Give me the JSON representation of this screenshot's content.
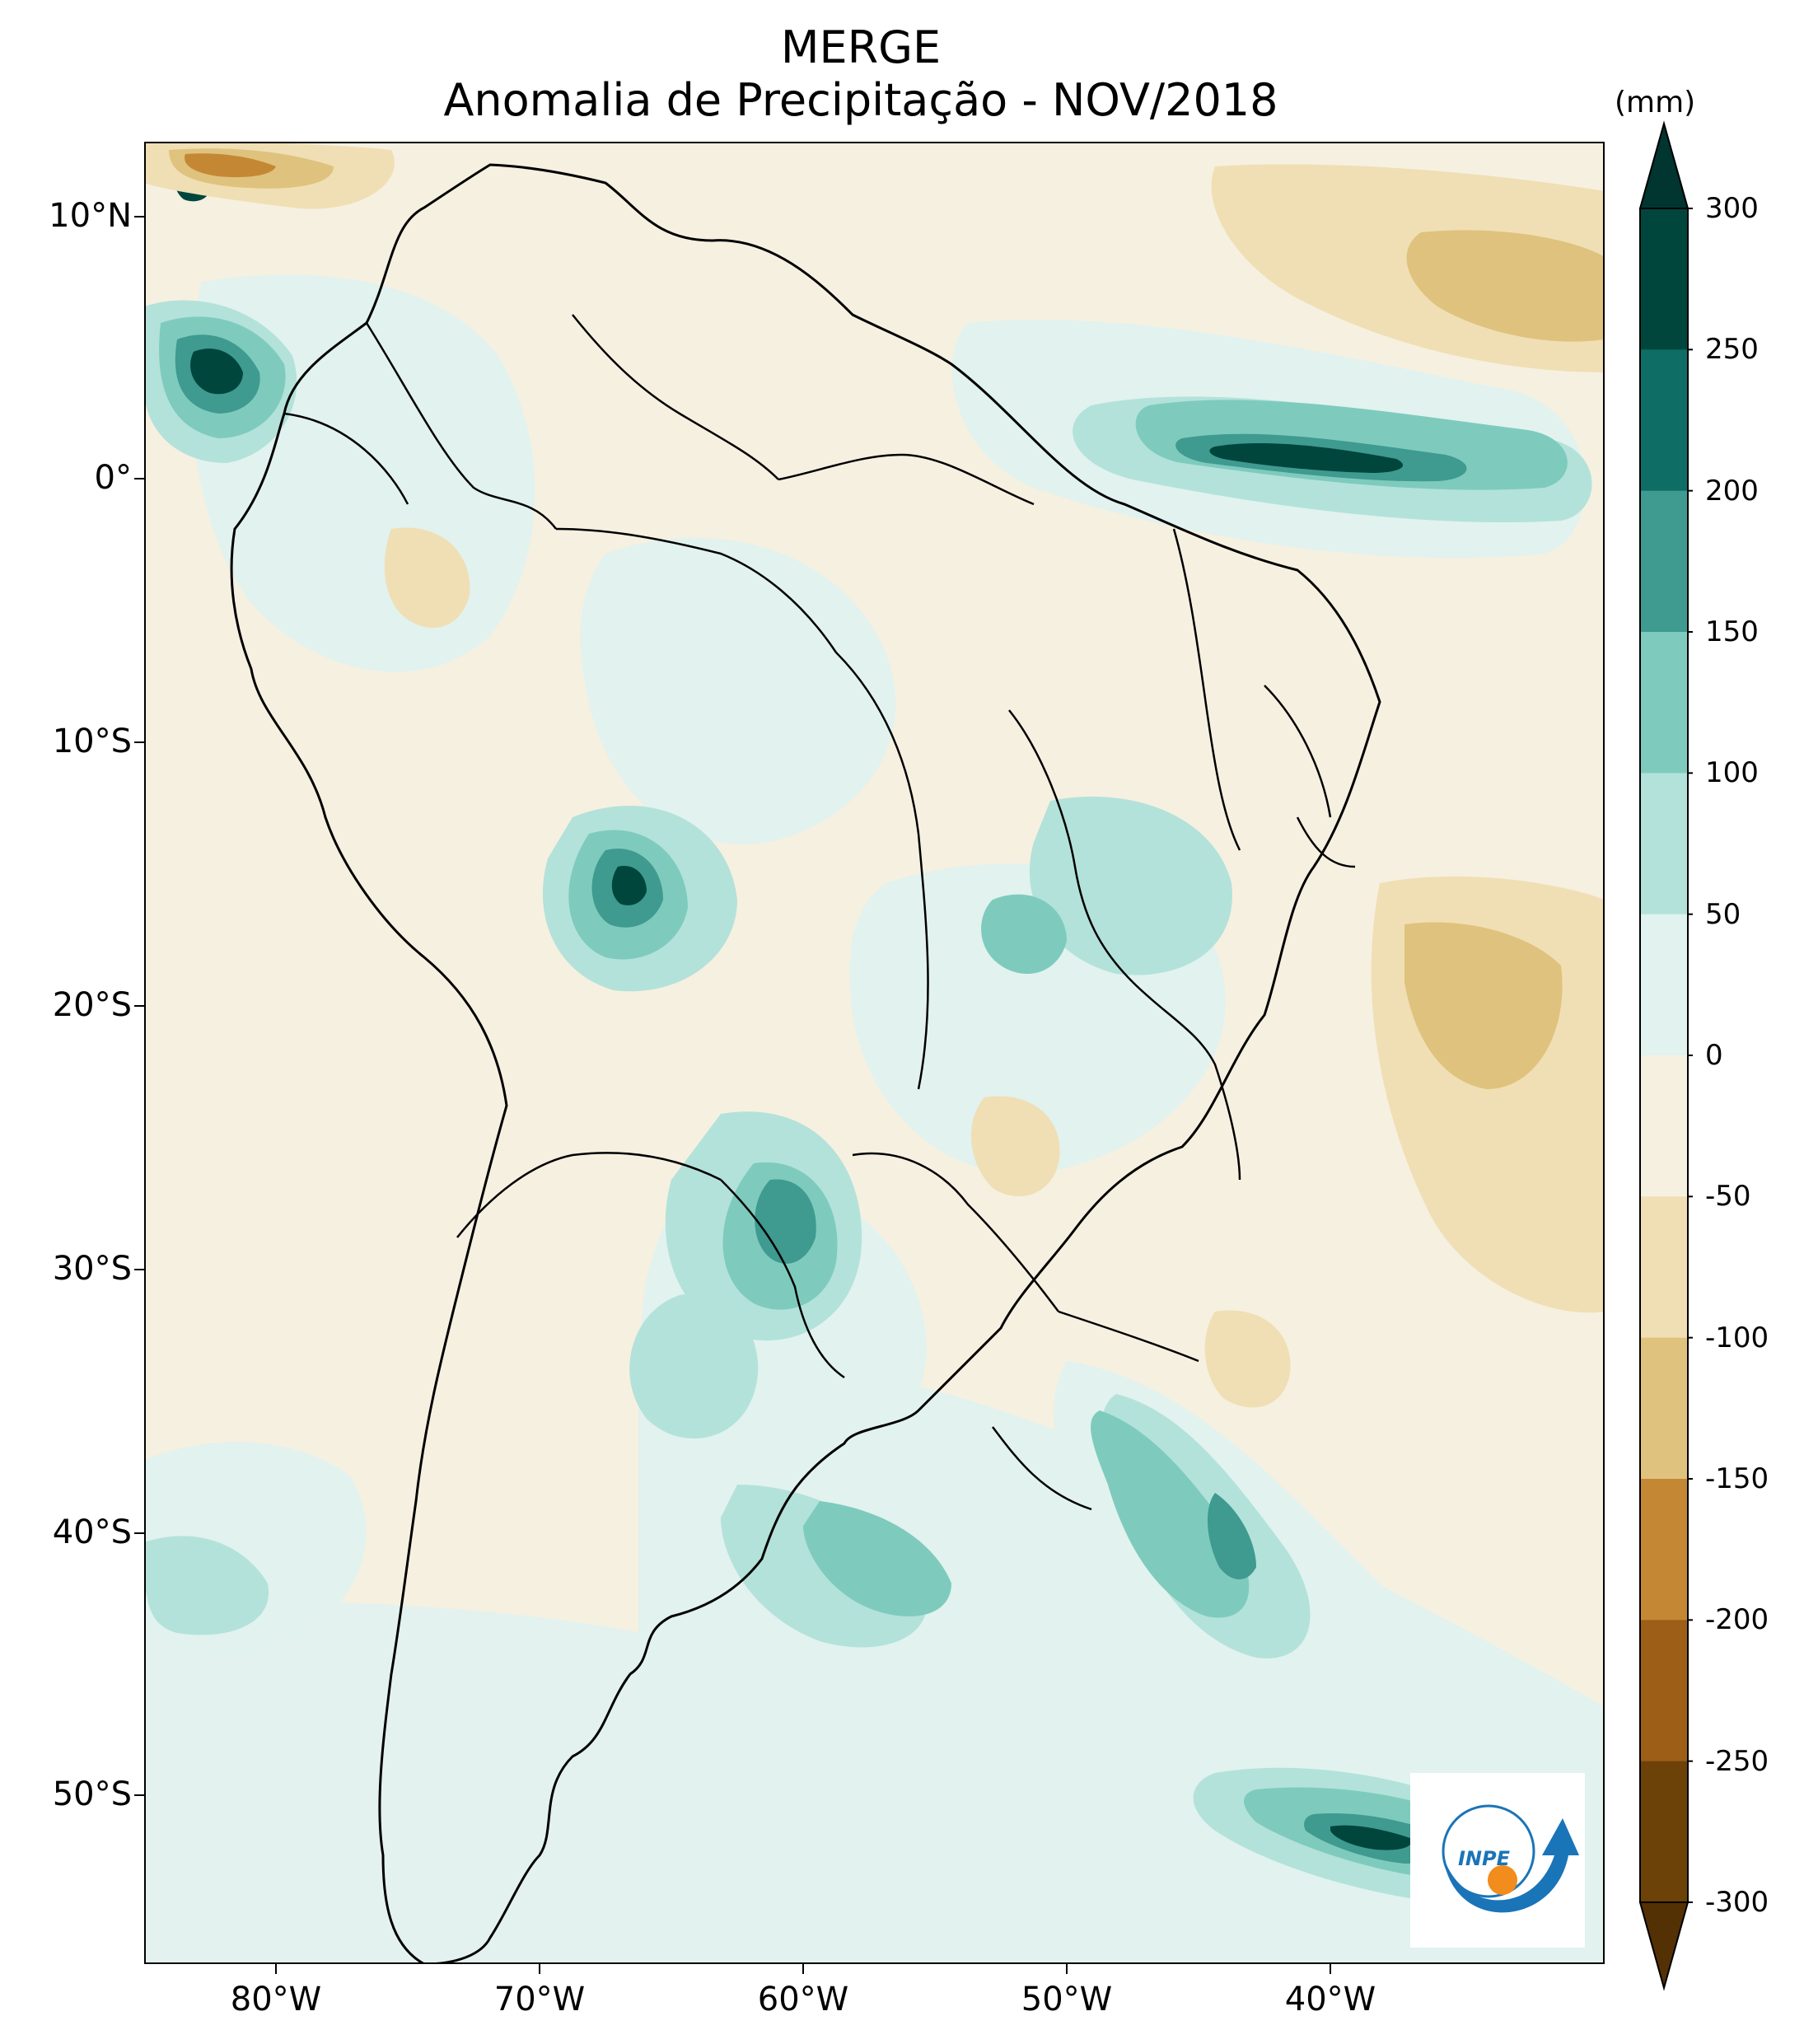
{
  "title": {
    "line1": "MERGE",
    "line2": "Anomalia de Precipitação - NOV/2018"
  },
  "axes": {
    "lat_labels": [
      "10°N",
      "0°",
      "10°S",
      "20°S",
      "30°S",
      "40°S",
      "50°S"
    ],
    "lon_labels": [
      "80°W",
      "70°W",
      "60°W",
      "50°W",
      "40°W"
    ]
  },
  "colorbar": {
    "unit": "(mm)",
    "labels": [
      "300",
      "250",
      "200",
      "150",
      "100",
      "50",
      "0",
      "-50",
      "-100",
      "-150",
      "-200",
      "-250",
      "-300"
    ],
    "colors": [
      "#01463d",
      "#0e6e66",
      "#3f9a90",
      "#7ecbbd",
      "#b3e2da",
      "#e1f2ef",
      "#f6f0e1",
      "#f0dfb4",
      "#dfc27d",
      "#c48835",
      "#9d5f18",
      "#6d4209"
    ]
  },
  "logo": {
    "text": "INPE"
  }
}
